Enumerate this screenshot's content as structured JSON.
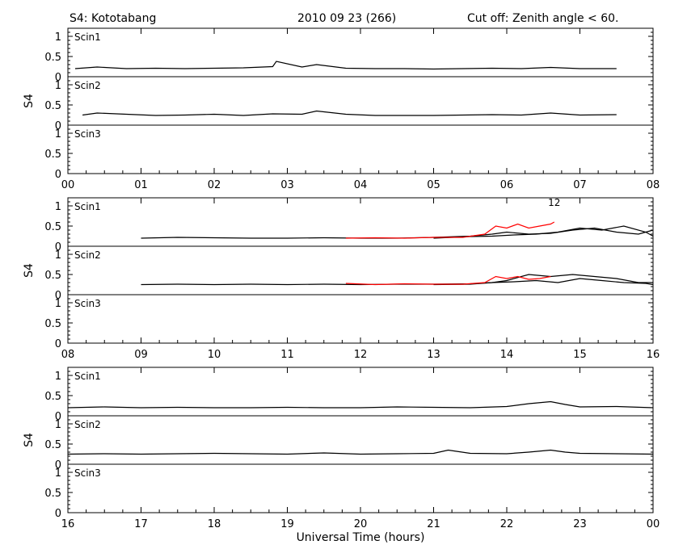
{
  "header": {
    "station": "S4: Kototabang",
    "date": "2010 09 23 (266)",
    "cutoff": "Cut off: Zenith angle < 60."
  },
  "xlabel": "Universal Time (hours)",
  "ylabel": "S4",
  "ytick_labels": [
    "0",
    "0.5",
    "1"
  ],
  "panel_labels": [
    "Scin1",
    "Scin2",
    "Scin3"
  ],
  "chart_data": [
    {
      "type": "line",
      "xlim": [
        0,
        8
      ],
      "x_tick_labels": [
        "00",
        "01",
        "02",
        "03",
        "04",
        "05",
        "06",
        "07",
        "08"
      ],
      "ylim": [
        0,
        1.2
      ],
      "panels": [
        {
          "name": "Scin1",
          "series": [
            {
              "color": "#000000",
              "x": [
                0.1,
                0.4,
                0.8,
                1.2,
                1.6,
                2.0,
                2.4,
                2.8,
                2.85,
                3.2,
                3.4,
                3.8,
                4.2,
                4.6,
                5.0,
                5.4,
                5.8,
                6.2,
                6.6,
                7.0,
                7.5
              ],
              "y": [
                0.2,
                0.24,
                0.2,
                0.21,
                0.2,
                0.21,
                0.22,
                0.25,
                0.38,
                0.24,
                0.3,
                0.21,
                0.2,
                0.2,
                0.19,
                0.2,
                0.21,
                0.2,
                0.23,
                0.2,
                0.2
              ]
            }
          ]
        },
        {
          "name": "Scin2",
          "series": [
            {
              "color": "#000000",
              "x": [
                0.2,
                0.4,
                0.8,
                1.2,
                1.6,
                2.0,
                2.4,
                2.8,
                3.2,
                3.4,
                3.8,
                4.2,
                4.6,
                5.0,
                5.4,
                5.8,
                6.2,
                6.6,
                7.0,
                7.5
              ],
              "y": [
                0.25,
                0.3,
                0.27,
                0.24,
                0.25,
                0.27,
                0.24,
                0.28,
                0.27,
                0.35,
                0.27,
                0.24,
                0.24,
                0.24,
                0.25,
                0.26,
                0.25,
                0.3,
                0.25,
                0.26
              ]
            }
          ]
        },
        {
          "name": "Scin3",
          "series": []
        }
      ]
    },
    {
      "type": "line",
      "xlim": [
        8,
        16
      ],
      "x_tick_labels": [
        "08",
        "09",
        "10",
        "11",
        "12",
        "13",
        "14",
        "15",
        "16"
      ],
      "ylim": [
        0,
        1.2
      ],
      "panels": [
        {
          "name": "Scin1",
          "annotation": {
            "text": "12",
            "color": "#ff0000",
            "x": 14.65,
            "y": 1.0
          },
          "series": [
            {
              "color": "#000000",
              "x": [
                9.0,
                9.5,
                10.0,
                10.5,
                11.0,
                11.5,
                12.0,
                12.5,
                13.0,
                13.5,
                13.8,
                14.0,
                14.3,
                14.6,
                14.9,
                15.2,
                15.5,
                15.8,
                16.0
              ],
              "y": [
                0.2,
                0.22,
                0.21,
                0.2,
                0.2,
                0.21,
                0.2,
                0.2,
                0.22,
                0.25,
                0.3,
                0.35,
                0.3,
                0.32,
                0.4,
                0.45,
                0.35,
                0.3,
                0.4
              ]
            },
            {
              "color": "#000000",
              "x": [
                13.0,
                13.5,
                13.8,
                14.1,
                14.4,
                14.7,
                15.0,
                15.3,
                15.6,
                15.9,
                16.0
              ],
              "y": [
                0.2,
                0.24,
                0.25,
                0.28,
                0.3,
                0.35,
                0.45,
                0.4,
                0.5,
                0.35,
                0.25
              ]
            },
            {
              "color": "#ff0000",
              "x": [
                11.8,
                12.2,
                12.6,
                13.0,
                13.4,
                13.7,
                13.85,
                14.0,
                14.15,
                14.3,
                14.45,
                14.6,
                14.65
              ],
              "y": [
                0.2,
                0.21,
                0.2,
                0.22,
                0.22,
                0.3,
                0.5,
                0.45,
                0.55,
                0.45,
                0.5,
                0.55,
                0.6
              ]
            }
          ]
        },
        {
          "name": "Scin2",
          "series": [
            {
              "color": "#000000",
              "x": [
                9.0,
                9.5,
                10.0,
                10.5,
                11.0,
                11.5,
                12.0,
                12.5,
                13.0,
                13.5,
                13.8,
                14.0,
                14.3,
                14.6,
                14.9,
                15.2,
                15.5,
                15.8,
                16.0
              ],
              "y": [
                0.25,
                0.26,
                0.25,
                0.26,
                0.25,
                0.26,
                0.25,
                0.26,
                0.26,
                0.27,
                0.3,
                0.35,
                0.5,
                0.45,
                0.5,
                0.45,
                0.4,
                0.3,
                0.3
              ]
            },
            {
              "color": "#000000",
              "x": [
                13.0,
                13.5,
                13.8,
                14.1,
                14.4,
                14.7,
                15.0,
                15.3,
                15.6,
                15.9,
                16.0
              ],
              "y": [
                0.25,
                0.26,
                0.3,
                0.32,
                0.35,
                0.3,
                0.4,
                0.35,
                0.3,
                0.28,
                0.25
              ]
            },
            {
              "color": "#ff0000",
              "x": [
                11.8,
                12.2,
                12.6,
                13.0,
                13.4,
                13.7,
                13.85,
                14.0,
                14.15,
                14.3,
                14.45,
                14.6
              ],
              "y": [
                0.28,
                0.25,
                0.27,
                0.26,
                0.26,
                0.3,
                0.45,
                0.4,
                0.45,
                0.38,
                0.4,
                0.45
              ]
            }
          ]
        },
        {
          "name": "Scin3",
          "series": []
        }
      ]
    },
    {
      "type": "line",
      "xlim": [
        16,
        24
      ],
      "x_tick_labels": [
        "16",
        "17",
        "18",
        "19",
        "20",
        "21",
        "22",
        "23",
        "00"
      ],
      "ylim": [
        0,
        1.2
      ],
      "panels": [
        {
          "name": "Scin1",
          "series": [
            {
              "color": "#000000",
              "x": [
                16.0,
                16.5,
                17.0,
                17.5,
                18.0,
                18.5,
                19.0,
                19.5,
                20.0,
                20.5,
                21.0,
                21.5,
                22.0,
                22.3,
                22.6,
                22.8,
                23.0,
                23.5,
                24.0
              ],
              "y": [
                0.2,
                0.22,
                0.2,
                0.21,
                0.2,
                0.2,
                0.21,
                0.2,
                0.2,
                0.22,
                0.21,
                0.2,
                0.23,
                0.3,
                0.35,
                0.28,
                0.22,
                0.23,
                0.2
              ]
            }
          ]
        },
        {
          "name": "Scin2",
          "series": [
            {
              "color": "#000000",
              "x": [
                16.0,
                16.5,
                17.0,
                17.5,
                18.0,
                18.5,
                19.0,
                19.5,
                20.0,
                20.5,
                21.0,
                21.2,
                21.5,
                22.0,
                22.3,
                22.6,
                22.8,
                23.0,
                23.5,
                24.0
              ],
              "y": [
                0.25,
                0.26,
                0.25,
                0.26,
                0.27,
                0.26,
                0.25,
                0.28,
                0.25,
                0.26,
                0.27,
                0.35,
                0.27,
                0.26,
                0.3,
                0.35,
                0.3,
                0.27,
                0.26,
                0.25
              ]
            }
          ]
        },
        {
          "name": "Scin3",
          "series": []
        }
      ]
    }
  ]
}
